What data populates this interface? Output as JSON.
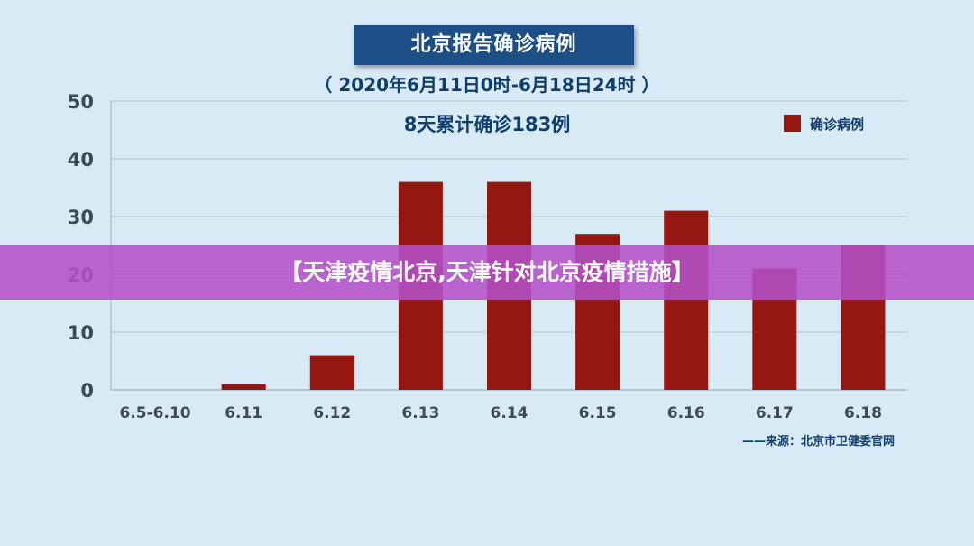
{
  "source_text": "——来源：北京市卫健委官网",
  "overlay_banner": "【天津疫情北京,天津针对北京疫情措施】",
  "colors": {
    "background": "#d7eaf6",
    "bar": "#951711",
    "title_box": "#1b4f86",
    "text": "#0f3e6e",
    "banner": "#b450c8"
  },
  "chart_data": {
    "type": "bar",
    "title": "北京报告确诊病例",
    "subtitle": "（ 2020年6月11日0时-6月18日24时 ）",
    "annotation": "8天累计确诊183例",
    "categories": [
      "6.5-6.10",
      "6.11",
      "6.12",
      "6.13",
      "6.14",
      "6.15",
      "6.16",
      "6.17",
      "6.18"
    ],
    "series": [
      {
        "name": "确诊病例",
        "values": [
          0,
          1,
          6,
          36,
          36,
          27,
          31,
          21,
          25
        ]
      }
    ],
    "ylim": [
      0,
      50
    ],
    "yticks": [
      0,
      10,
      20,
      30,
      40,
      50
    ],
    "xlabel": "",
    "ylabel": "",
    "grid": true,
    "legend": "top-right"
  }
}
